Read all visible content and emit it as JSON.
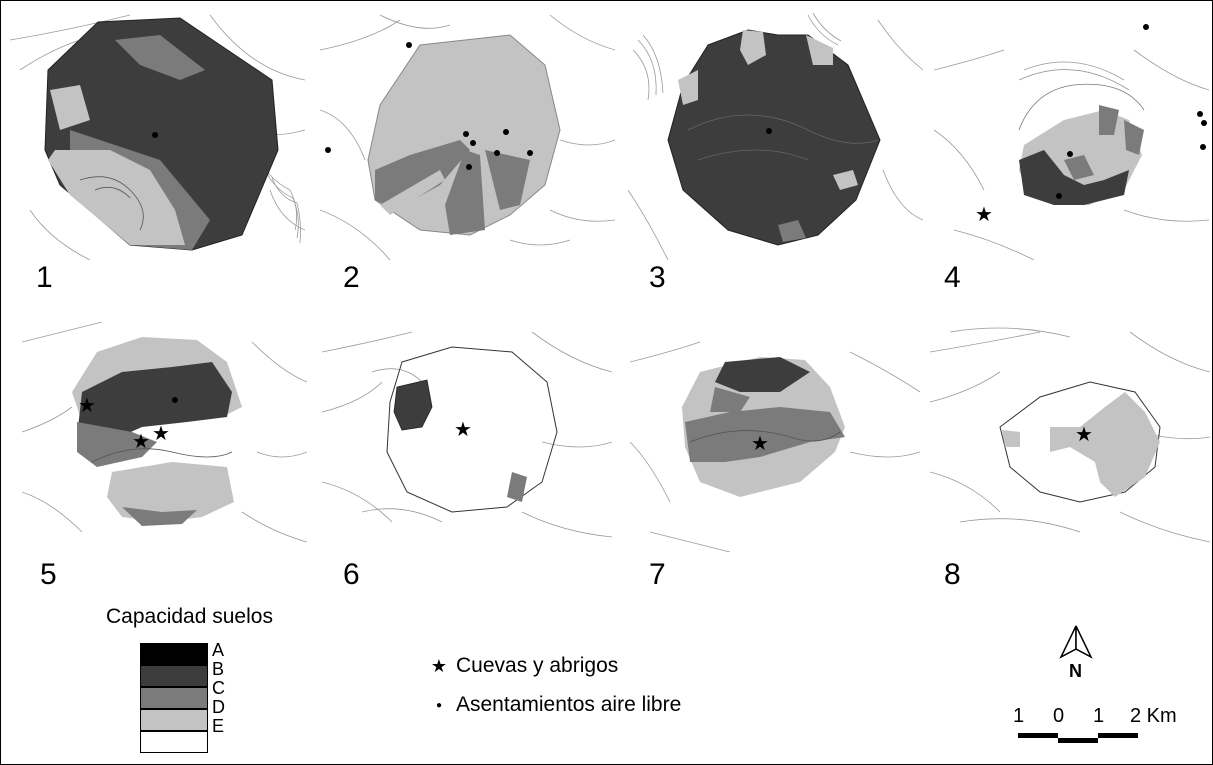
{
  "panels": [
    "1",
    "2",
    "3",
    "4",
    "5",
    "6",
    "7",
    "8"
  ],
  "legend": {
    "title": "Capacidad suelos",
    "classes": [
      {
        "label": "A",
        "color": "#000000"
      },
      {
        "label": "B",
        "color": "#3d3d3d"
      },
      {
        "label": "C",
        "color": "#7b7b7b"
      },
      {
        "label": "D",
        "color": "#c3c3c3"
      },
      {
        "label": "E",
        "color": "#ffffff"
      }
    ]
  },
  "symbols": {
    "caves": {
      "glyph": "★",
      "label": "Cuevas y abrigos"
    },
    "settlements": {
      "glyph": "●",
      "label": "Asentamientos aire libre"
    }
  },
  "north_arrow": {
    "label": "N"
  },
  "scale_bar": {
    "labels": [
      "1",
      "0",
      "1",
      "2 Km"
    ]
  }
}
